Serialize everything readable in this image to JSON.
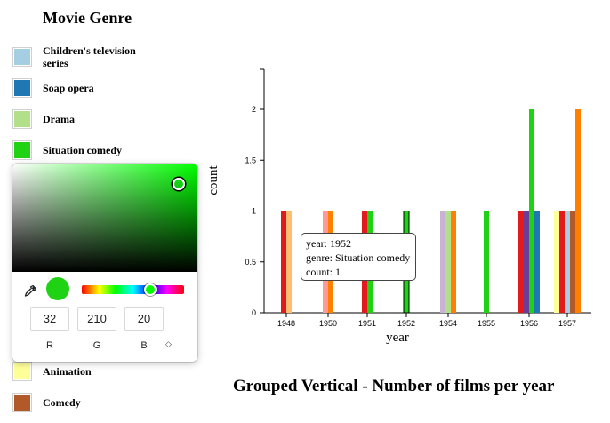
{
  "legend": {
    "title": "Movie Genre",
    "items": [
      {
        "label": "Children's television series",
        "color": "#a6cee3"
      },
      {
        "label": "Soap opera",
        "color": "#1f78b4"
      },
      {
        "label": "Drama",
        "color": "#b2df8a"
      },
      {
        "label": "Situation comedy",
        "color": "#20d214"
      },
      {
        "label": "Animation",
        "color": "#ffff99"
      },
      {
        "label": "Comedy",
        "color": "#b15928"
      }
    ]
  },
  "color_picker": {
    "hue_color": "#00ff00",
    "selected_color": "#20d214",
    "r_value": "32",
    "g_value": "210",
    "b_value": "20",
    "r_label": "R",
    "g_label": "G",
    "b_label": "B",
    "mode_toggle": "◇"
  },
  "tooltip": {
    "line1": "year: 1952",
    "line2": "genre: Situation comedy",
    "line3": "count: 1"
  },
  "chart_title": "Grouped Vertical - Number of films per year",
  "chart_data": {
    "type": "bar",
    "xlabel": "year",
    "ylabel": "count",
    "ylim": [
      0,
      2
    ],
    "yticks": [
      0,
      0.5,
      1,
      1.5,
      2
    ],
    "categories": [
      "1948",
      "1950",
      "1951",
      "1952",
      "1954",
      "1955",
      "1956",
      "1957"
    ],
    "bars": [
      {
        "year": "1948",
        "values": [
          1,
          1
        ],
        "colors": [
          "#e31a1c",
          "#fdbf6f"
        ]
      },
      {
        "year": "1950",
        "values": [
          1,
          1
        ],
        "colors": [
          "#fb9a99",
          "#ff7f00"
        ]
      },
      {
        "year": "1951",
        "values": [
          1,
          1
        ],
        "colors": [
          "#e31a1c",
          "#20d214"
        ]
      },
      {
        "year": "1952",
        "values": [
          1
        ],
        "colors": [
          "#20d214"
        ],
        "highlighted": true
      },
      {
        "year": "1954",
        "values": [
          1,
          1,
          1
        ],
        "colors": [
          "#cab2d6",
          "#b2df8a",
          "#ff7f00"
        ]
      },
      {
        "year": "1955",
        "values": [
          1
        ],
        "colors": [
          "#20d214"
        ]
      },
      {
        "year": "1956",
        "values": [
          1,
          1,
          2,
          1
        ],
        "colors": [
          "#e31a1c",
          "#6a3d9a",
          "#20d214",
          "#1f78b4"
        ]
      },
      {
        "year": "1957",
        "values": [
          1,
          1,
          1,
          1,
          2
        ],
        "colors": [
          "#ffff99",
          "#e31a1c",
          "#a6cee3",
          "#b15928",
          "#ff7f00"
        ]
      }
    ]
  }
}
